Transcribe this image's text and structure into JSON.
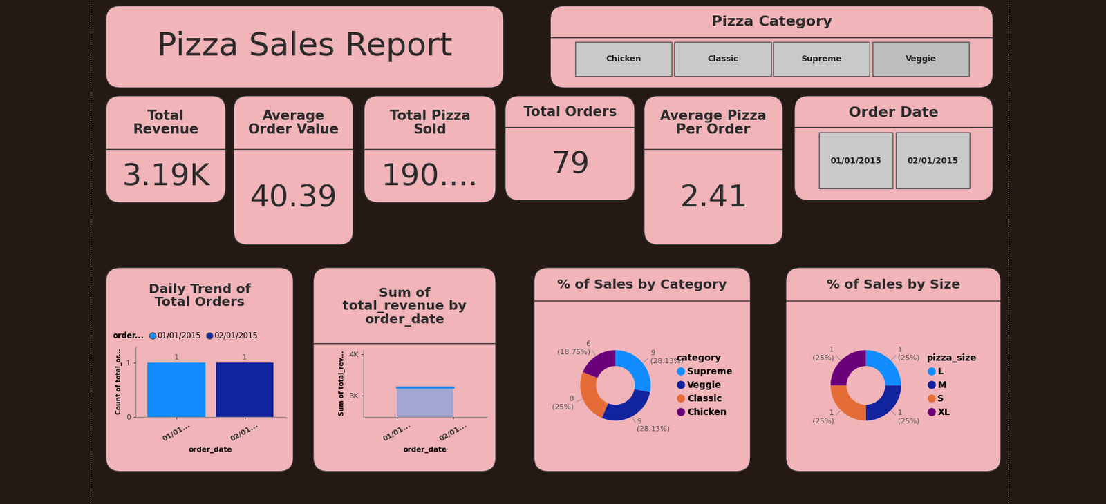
{
  "title": "Pizza Sales Report",
  "slicers": [
    {
      "title": "Pizza Category",
      "items": [
        "Chicken",
        "Classic",
        "Supreme",
        "Veggie"
      ]
    },
    {
      "title": "Order Date",
      "items": [
        "01/01/2015",
        "02/01/2015"
      ]
    }
  ],
  "cards": [
    {
      "title": "Total Revenue",
      "value": "3.19K"
    },
    {
      "title": "Average Order Value",
      "value": "40.39"
    },
    {
      "title": "Total Pizza Sold",
      "value": "190...."
    },
    {
      "title": "Total Orders",
      "value": "79"
    },
    {
      "title": "Average Pizza Per Order",
      "value": "2.41"
    }
  ],
  "chart_data": [
    {
      "type": "bar",
      "title": "Daily Trend of Total Orders",
      "x_label": "order_date",
      "y_label": "Count of total_or...",
      "categories": [
        "01/01...",
        "02/01..."
      ],
      "legend_title": "order...",
      "legend": "top",
      "series": [
        {
          "name": "01/01/2015",
          "color": "#118dff",
          "values": [
            1,
            null
          ]
        },
        {
          "name": "02/01/2015",
          "color": "#12239e",
          "values": [
            null,
            1
          ]
        }
      ],
      "ylim": [
        0,
        1.3
      ],
      "yticks": [
        0,
        1
      ],
      "data_labels": true
    },
    {
      "type": "area",
      "title": "Sum of total_revenue by order_date",
      "x_label": "order_date",
      "y_label": "Sum of total_rev...",
      "categories": [
        "01/01...",
        "02/01..."
      ],
      "values": [
        3200,
        3200
      ],
      "color": "#118dff",
      "ylim": [
        2500,
        4100
      ],
      "yticks": [
        {
          "value": 3000,
          "label": "3K"
        },
        {
          "value": 4000,
          "label": "4K"
        }
      ]
    },
    {
      "type": "donut",
      "title": "% of Sales by Category",
      "legend_title": "category",
      "legend": "right",
      "categories": [
        "Supreme",
        "Veggie",
        "Classic",
        "Chicken"
      ],
      "values": [
        9,
        9,
        8,
        6
      ],
      "value_labels": [
        "9\n(28.13%)",
        "9\n(28.13%)",
        "8\n(25%)",
        "6\n(18.75%)"
      ],
      "colors": [
        "#118dff",
        "#12239e",
        "#e66c37",
        "#6b007b"
      ],
      "data_labels": true
    },
    {
      "type": "donut",
      "title": "% of Sales by Size",
      "legend_title": "pizza_size",
      "legend": "right",
      "categories": [
        "L",
        "M",
        "S",
        "XL"
      ],
      "values": [
        1,
        1,
        1,
        1
      ],
      "value_labels": [
        "1\n(25%)",
        "1\n(25%)",
        "1\n(25%)",
        "1\n(25%)"
      ],
      "colors": [
        "#118dff",
        "#12239e",
        "#e66c37",
        "#6b007b"
      ],
      "data_labels": true
    }
  ]
}
